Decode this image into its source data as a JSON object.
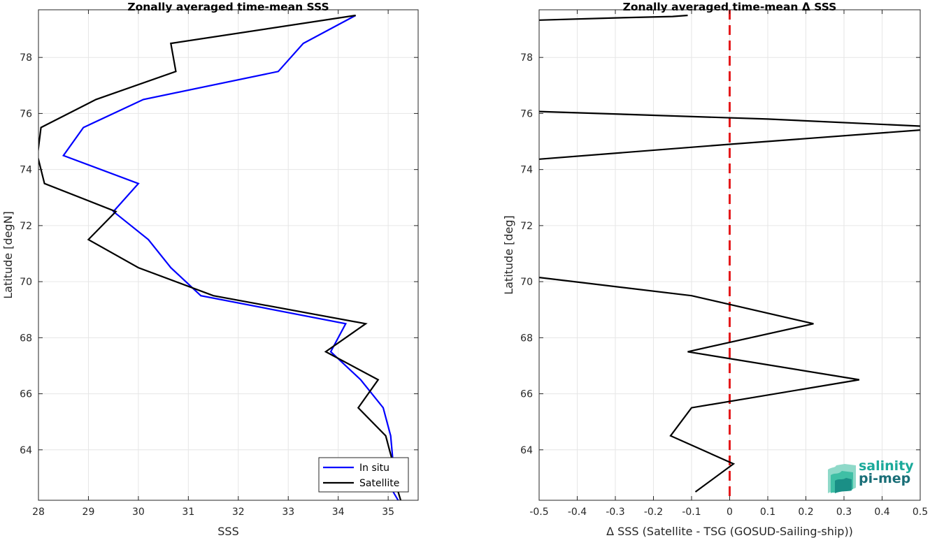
{
  "chart_data": [
    {
      "type": "line",
      "title": "Zonally averaged time-mean SSS",
      "xlabel": "SSS",
      "ylabel": "Latitude [degN]",
      "xlim": [
        28,
        35.6
      ],
      "ylim": [
        62.2,
        79.7
      ],
      "xticks": [
        28,
        29,
        30,
        31,
        32,
        33,
        34,
        35
      ],
      "yticks": [
        64,
        66,
        68,
        70,
        72,
        74,
        76,
        78
      ],
      "grid": true,
      "legend": {
        "position": "bottom-right"
      },
      "series": [
        {
          "name": "In situ",
          "color": "#0000ff",
          "x": [
            34.35,
            33.3,
            32.8,
            30.1,
            28.9,
            28.5,
            30.0,
            29.5,
            30.2,
            30.65,
            31.25,
            34.15,
            33.85,
            34.45,
            34.9,
            35.05,
            35.1,
            35.1,
            35.2
          ],
          "y": [
            79.5,
            78.5,
            77.5,
            76.5,
            75.5,
            74.5,
            73.5,
            72.5,
            71.5,
            70.5,
            69.5,
            68.5,
            67.5,
            66.5,
            65.5,
            64.5,
            63.5,
            62.5,
            62.2
          ]
        },
        {
          "name": "Satellite",
          "color": "#000000",
          "x": [
            34.35,
            30.65,
            30.75,
            29.15,
            28.05,
            27.98,
            28.12,
            29.55,
            29.0,
            30.0,
            31.5,
            34.55,
            33.75,
            34.8,
            34.4,
            34.95,
            35.1,
            35.2,
            35.25
          ],
          "y": [
            79.5,
            78.5,
            77.5,
            76.5,
            75.5,
            74.5,
            73.5,
            72.5,
            71.5,
            70.5,
            69.5,
            68.5,
            67.5,
            66.5,
            65.5,
            64.5,
            63.5,
            62.5,
            62.2
          ]
        }
      ]
    },
    {
      "type": "line",
      "title": "Zonally averaged time-mean Δ SSS",
      "xlabel": "Δ SSS (Satellite - TSG (GOSUD-Sailing-ship))",
      "ylabel": "Latitude [deg]",
      "xlim": [
        -0.5,
        0.5
      ],
      "ylim": [
        62.2,
        79.7
      ],
      "xticks": [
        -0.5,
        -0.4,
        -0.3,
        -0.2,
        -0.1,
        0,
        0.1,
        0.2,
        0.3,
        0.4,
        0.5
      ],
      "xticklabels": [
        "-0.5",
        "-0.4",
        "-0.3",
        "-0.2",
        "-0.1",
        "0",
        "0.1",
        "0.2",
        "0.3",
        "0.4",
        "0.5"
      ],
      "yticks": [
        64,
        66,
        68,
        70,
        72,
        74,
        76,
        78
      ],
      "grid": true,
      "reference_line": {
        "x": 0,
        "color": "#e41a1c",
        "style": "dashed"
      },
      "series": [
        {
          "color": "#000000",
          "segments": [
            {
              "x": [
                -0.5,
                -0.3,
                -0.15,
                -0.11
              ],
              "y": [
                79.33,
                79.41,
                79.46,
                79.5
              ]
            },
            {
              "x": [
                -0.5,
                0.1,
                0.5
              ],
              "y": [
                76.07,
                75.8,
                75.55
              ]
            },
            {
              "x": [
                0.5,
                0.0,
                -0.5
              ],
              "y": [
                75.41,
                74.9,
                74.37
              ]
            },
            {
              "x": [
                -0.5,
                -0.1,
                0.22,
                -0.11,
                0.34,
                -0.1,
                -0.155,
                0.01,
                -0.09
              ],
              "y": [
                70.15,
                69.5,
                68.5,
                67.5,
                66.5,
                65.5,
                64.5,
                63.5,
                62.5
              ]
            }
          ]
        }
      ]
    }
  ],
  "logo": {
    "line1": "salinity",
    "line2": "pi-mep"
  }
}
